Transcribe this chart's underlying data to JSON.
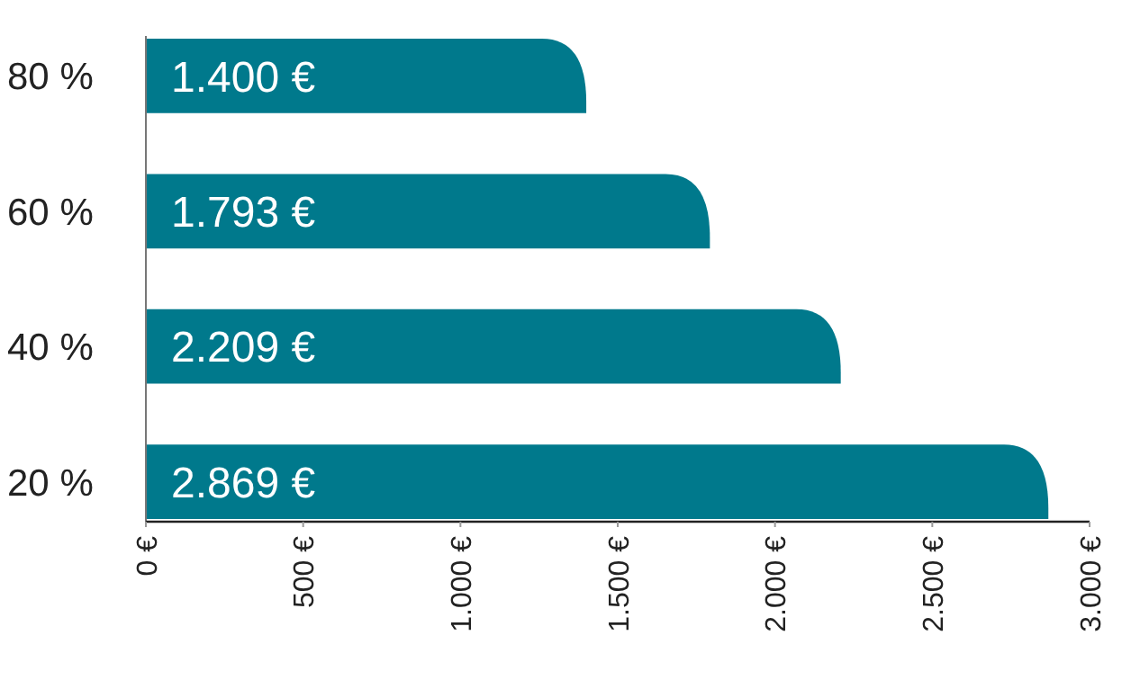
{
  "chart_data": {
    "type": "bar",
    "orientation": "horizontal",
    "categories": [
      "80 %",
      "60 %",
      "40 %",
      "20 %"
    ],
    "values": [
      1400,
      1793,
      2209,
      2869
    ],
    "value_labels": [
      "1.400 €",
      "1.793 €",
      "2.209 €",
      "2.869 €"
    ],
    "color": "#00798c",
    "xlim": [
      0,
      3000
    ],
    "xticks": [
      {
        "value": 0,
        "label": "0 €"
      },
      {
        "value": 500,
        "label": "500 €"
      },
      {
        "value": 1000,
        "label": "1.000 €"
      },
      {
        "value": 1500,
        "label": "1.500 €"
      },
      {
        "value": 2000,
        "label": "2.000 €"
      },
      {
        "value": 2500,
        "label": "2.500 €"
      },
      {
        "value": 3000,
        "label": "3.000 €"
      }
    ],
    "grid": false
  }
}
